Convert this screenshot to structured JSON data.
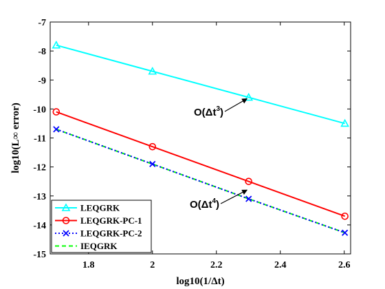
{
  "chart_data": {
    "type": "line",
    "title": "",
    "xlabel": "log10(1/Δt)",
    "ylabel": "log10(L∞ error)",
    "xlim": [
      1.68,
      2.62
    ],
    "ylim": [
      -15,
      -7
    ],
    "xticks": [
      1.8,
      2.0,
      2.2,
      2.4,
      2.6
    ],
    "xtick_labels": [
      "1.8",
      "2",
      "2.2",
      "2.4",
      "2.6"
    ],
    "yticks": [
      -15,
      -14,
      -13,
      -12,
      -11,
      -10,
      -9,
      -8,
      -7
    ],
    "ytick_labels": [
      "-15",
      "-14",
      "-13",
      "-12",
      "-11",
      "-10",
      "-9",
      "-8",
      "-7"
    ],
    "grid": false,
    "legend_position": "bottom-left",
    "x": [
      1.699,
      2.0,
      2.301,
      2.602
    ],
    "series": [
      {
        "name": "LEQGRK",
        "values": [
          -7.8,
          -8.7,
          -9.6,
          -10.5
        ],
        "color": "#00ffff",
        "marker": "triangle",
        "line": "solid"
      },
      {
        "name": "LEQGRK-PC-1",
        "values": [
          -10.1,
          -11.3,
          -12.5,
          -13.7
        ],
        "color": "#ff0000",
        "marker": "circle",
        "line": "solid"
      },
      {
        "name": "LEQGRK-PC-2",
        "values": [
          -10.7,
          -11.9,
          -13.1,
          -14.27
        ],
        "color": "#0000ff",
        "marker": "x",
        "line": "dotted"
      },
      {
        "name": "IEQGRK",
        "values": [
          -10.7,
          -11.9,
          -13.1,
          -14.27
        ],
        "color": "#00ff00",
        "marker": "none",
        "line": "dashed"
      }
    ],
    "annotations": [
      {
        "prefix": "O(Δt",
        "exponent": "3",
        "suffix": ")",
        "arrow_to": [
          2.3,
          -9.6
        ]
      },
      {
        "prefix": "O(Δt",
        "exponent": "4",
        "suffix": ")",
        "arrow_to": [
          2.3,
          -12.75
        ]
      }
    ]
  }
}
